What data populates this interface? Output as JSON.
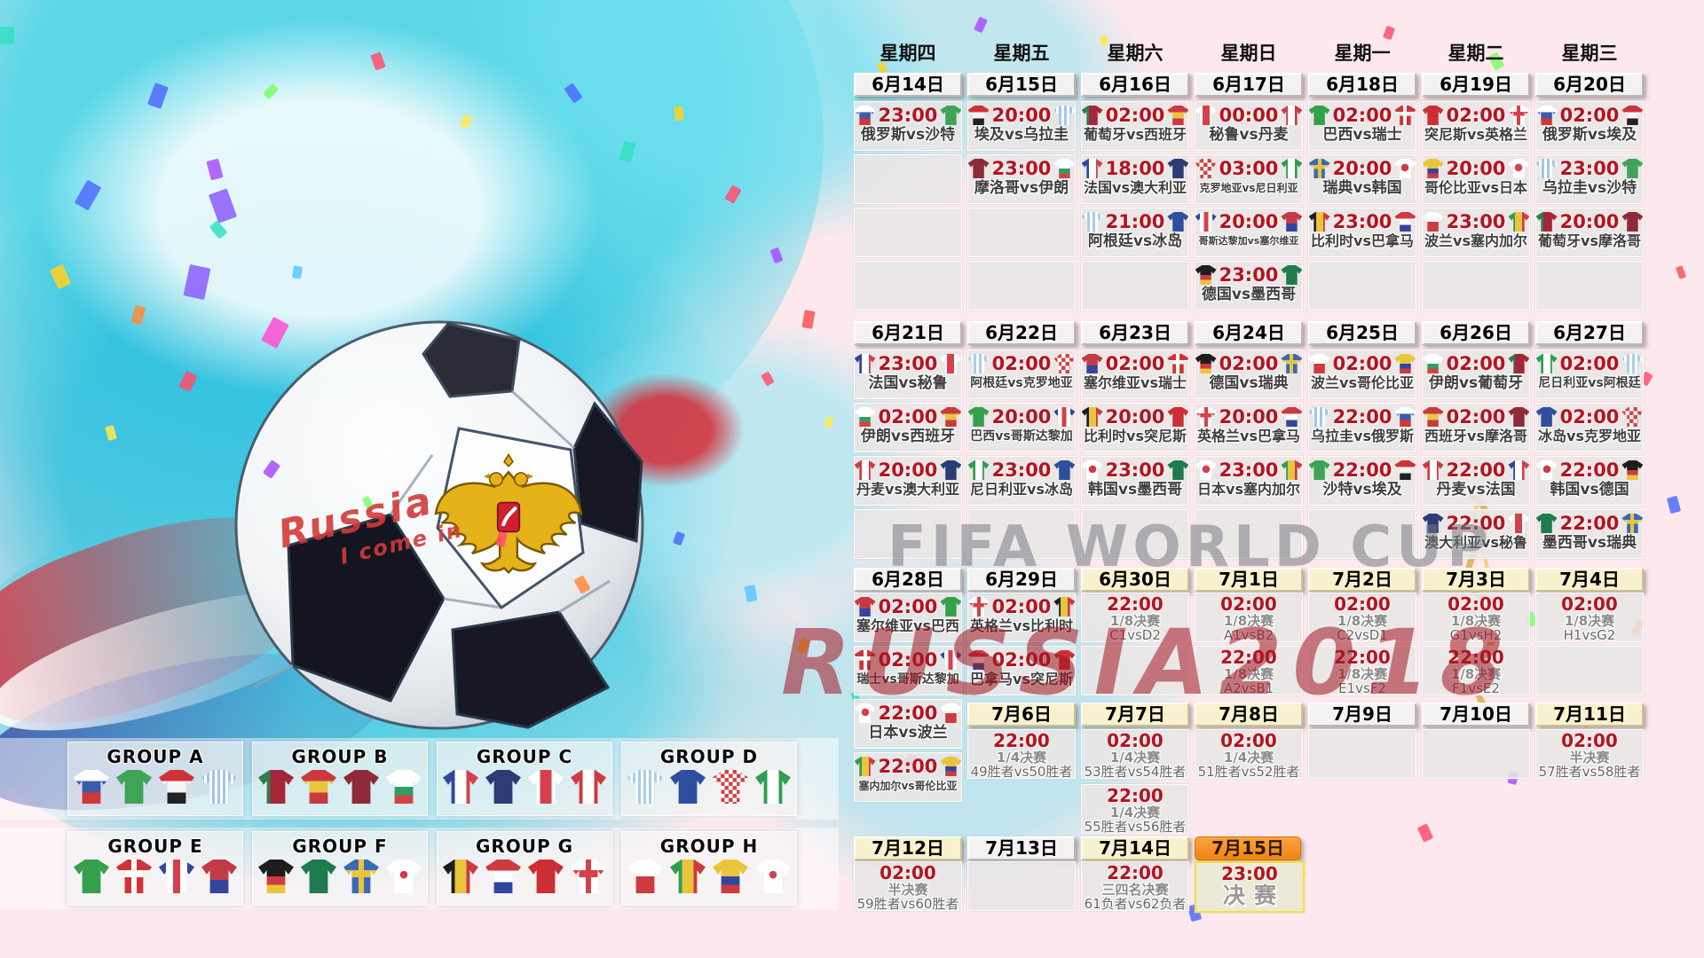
{
  "watermark": {
    "line1": "FIFA WORLD CUP",
    "line2": "RUSSIA2018"
  },
  "ball": {
    "text_line1": "Russia",
    "text_line2": "I come in"
  },
  "weekdays": [
    "星期四",
    "星期五",
    "星期六",
    "星期日",
    "星期一",
    "星期二",
    "星期三"
  ],
  "weeks": [
    {
      "dates": [
        {
          "label": "6月14日",
          "style": "gray"
        },
        {
          "label": "6月15日",
          "style": "gray"
        },
        {
          "label": "6月16日",
          "style": "gray"
        },
        {
          "label": "6月17日",
          "style": "gray"
        },
        {
          "label": "6月18日",
          "style": "gray"
        },
        {
          "label": "6月19日",
          "style": "gray"
        },
        {
          "label": "6月20日",
          "style": "gray"
        }
      ],
      "columns": [
        [
          {
            "t": "23:00",
            "h": "俄罗斯",
            "a": "沙特"
          },
          {},
          {},
          {}
        ],
        [
          {
            "t": "20:00",
            "h": "埃及",
            "a": "乌拉圭"
          },
          {
            "t": "23:00",
            "h": "摩洛哥",
            "a": "伊朗"
          },
          {},
          {}
        ],
        [
          {
            "t": "02:00",
            "h": "葡萄牙",
            "a": "西班牙"
          },
          {
            "t": "18:00",
            "h": "法国",
            "a": "澳大利亚"
          },
          {
            "t": "21:00",
            "h": "阿根廷",
            "a": "冰岛"
          },
          {}
        ],
        [
          {
            "t": "00:00",
            "h": "秘鲁",
            "a": "丹麦"
          },
          {
            "t": "03:00",
            "h": "克罗地亚",
            "a": "尼日利亚"
          },
          {
            "t": "20:00",
            "h": "哥斯达黎加",
            "a": "塞尔维亚"
          },
          {
            "t": "23:00",
            "h": "德国",
            "a": "墨西哥"
          }
        ],
        [
          {
            "t": "02:00",
            "h": "巴西",
            "a": "瑞士"
          },
          {
            "t": "20:00",
            "h": "瑞典",
            "a": "韩国"
          },
          {
            "t": "23:00",
            "h": "比利时",
            "a": "巴拿马"
          },
          {}
        ],
        [
          {
            "t": "02:00",
            "h": "突尼斯",
            "a": "英格兰"
          },
          {
            "t": "20:00",
            "h": "哥伦比亚",
            "a": "日本"
          },
          {
            "t": "23:00",
            "h": "波兰",
            "a": "塞内加尔"
          },
          {}
        ],
        [
          {
            "t": "02:00",
            "h": "俄罗斯",
            "a": "埃及"
          },
          {
            "t": "23:00",
            "h": "乌拉圭",
            "a": "沙特"
          },
          {
            "t": "20:00",
            "h": "葡萄牙",
            "a": "摩洛哥"
          },
          {}
        ]
      ]
    },
    {
      "dates": [
        {
          "label": "6月21日",
          "style": "gray"
        },
        {
          "label": "6月22日",
          "style": "gray"
        },
        {
          "label": "6月23日",
          "style": "gray"
        },
        {
          "label": "6月24日",
          "style": "gray"
        },
        {
          "label": "6月25日",
          "style": "gray"
        },
        {
          "label": "6月26日",
          "style": "gray"
        },
        {
          "label": "6月27日",
          "style": "gray"
        }
      ],
      "columns": [
        [
          {
            "t": "23:00",
            "h": "法国",
            "a": "秘鲁"
          },
          {
            "t": "02:00",
            "h": "伊朗",
            "a": "西班牙"
          },
          {
            "t": "20:00",
            "h": "丹麦",
            "a": "澳大利亚"
          },
          {}
        ],
        [
          {
            "t": "02:00",
            "h": "阿根廷",
            "a": "克罗地亚"
          },
          {
            "t": "20:00",
            "h": "巴西",
            "a": "哥斯达黎加"
          },
          {
            "t": "23:00",
            "h": "尼日利亚",
            "a": "冰岛"
          },
          {}
        ],
        [
          {
            "t": "02:00",
            "h": "塞尔维亚",
            "a": "瑞士"
          },
          {
            "t": "20:00",
            "h": "比利时",
            "a": "突尼斯"
          },
          {
            "t": "23:00",
            "h": "韩国",
            "a": "墨西哥"
          },
          {}
        ],
        [
          {
            "t": "02:00",
            "h": "德国",
            "a": "瑞典"
          },
          {
            "t": "20:00",
            "h": "英格兰",
            "a": "巴拿马"
          },
          {
            "t": "23:00",
            "h": "日本",
            "a": "塞内加尔"
          },
          {}
        ],
        [
          {
            "t": "02:00",
            "h": "波兰",
            "a": "哥伦比亚"
          },
          {
            "t": "22:00",
            "h": "乌拉圭",
            "a": "俄罗斯"
          },
          {
            "t": "22:00",
            "h": "沙特",
            "a": "埃及"
          },
          {}
        ],
        [
          {
            "t": "02:00",
            "h": "伊朗",
            "a": "葡萄牙"
          },
          {
            "t": "02:00",
            "h": "西班牙",
            "a": "摩洛哥"
          },
          {
            "t": "22:00",
            "h": "丹麦",
            "a": "法国"
          },
          {
            "t": "22:00",
            "h": "澳大利亚",
            "a": "秘鲁"
          }
        ],
        [
          {
            "t": "02:00",
            "h": "尼日利亚",
            "a": "阿根廷"
          },
          {
            "t": "02:00",
            "h": "冰岛",
            "a": "克罗地亚"
          },
          {
            "t": "22:00",
            "h": "韩国",
            "a": "德国"
          },
          {
            "t": "22:00",
            "h": "墨西哥",
            "a": "瑞典"
          }
        ]
      ]
    },
    {
      "dates": [
        {
          "label": "6月28日",
          "style": "gray"
        },
        {
          "label": "6月29日",
          "style": "gray"
        },
        {
          "label": "6月30日",
          "style": "yellow"
        },
        {
          "label": "7月1日",
          "style": "yellow"
        },
        {
          "label": "7月2日",
          "style": "yellow"
        },
        {
          "label": "7月3日",
          "style": "yellow"
        },
        {
          "label": "7月4日",
          "style": "yellow"
        }
      ],
      "columns": [
        [
          {
            "t": "02:00",
            "h": "塞尔维亚",
            "a": "巴西"
          },
          {
            "t": "02:00",
            "h": "瑞士",
            "a": "哥斯达黎加"
          },
          {
            "t": "22:00",
            "h": "日本",
            "a": "波兰"
          },
          {
            "t": "22:00",
            "h": "塞内加尔",
            "a": "哥伦比亚"
          }
        ],
        [
          {
            "t": "02:00",
            "h": "英格兰",
            "a": "比利时"
          },
          {
            "t": "02:00",
            "h": "巴拿马",
            "a": "突尼斯"
          }
        ],
        [
          {
            "t": "22:00",
            "s": "1/8决赛",
            "d": "C1vsD2"
          },
          {}
        ],
        [
          {
            "t": "02:00",
            "s": "1/8决赛",
            "d": "A1vsB2"
          },
          {
            "t": "22:00",
            "s": "1/8决赛",
            "d": "A2vsB1"
          }
        ],
        [
          {
            "t": "02:00",
            "s": "1/8决赛",
            "d": "C2vsD1"
          },
          {
            "t": "22:00",
            "s": "1/8决赛",
            "d": "E1vsF2"
          }
        ],
        [
          {
            "t": "02:00",
            "s": "1/8决赛",
            "d": "G1vsH2"
          },
          {
            "t": "22:00",
            "s": "1/8决赛",
            "d": "F1vsE2"
          }
        ],
        [
          {
            "t": "02:00",
            "s": "1/8决赛",
            "d": "H1vsG2"
          },
          {}
        ]
      ]
    },
    {
      "dates": [
        null,
        {
          "label": "7月6日",
          "style": "yellow"
        },
        {
          "label": "7月7日",
          "style": "yellow"
        },
        {
          "label": "7月8日",
          "style": "yellow"
        },
        {
          "label": "7月9日",
          "style": "gray"
        },
        {
          "label": "7月10日",
          "style": "gray"
        },
        {
          "label": "7月11日",
          "style": "yellow"
        }
      ],
      "columns": [
        [
          null,
          null
        ],
        [
          {
            "t": "22:00",
            "s": "1/4决赛",
            "d": "49胜者vs50胜者"
          },
          null
        ],
        [
          {
            "t": "02:00",
            "s": "1/4决赛",
            "d": "53胜者vs54胜者"
          },
          {
            "t": "22:00",
            "s": "1/4决赛",
            "d": "55胜者vs56胜者"
          }
        ],
        [
          {
            "t": "02:00",
            "s": "1/4决赛",
            "d": "51胜者vs52胜者"
          },
          null
        ],
        [
          {},
          null
        ],
        [
          {},
          null
        ],
        [
          {
            "t": "02:00",
            "s": "半决赛",
            "d": "57胜者vs58胜者"
          },
          null
        ]
      ]
    },
    {
      "dates": [
        {
          "label": "7月12日",
          "style": "yellow"
        },
        {
          "label": "7月13日",
          "style": "gray"
        },
        {
          "label": "7月14日",
          "style": "yellow"
        },
        {
          "label": "7月15日",
          "style": "orange"
        },
        null,
        null,
        null
      ],
      "columns": [
        [
          {
            "t": "02:00",
            "s": "半决赛",
            "d": "59胜者vs60胜者"
          }
        ],
        [
          {}
        ],
        [
          {
            "t": "22:00",
            "s": "三四名决赛",
            "d": "61负者vs62负者"
          }
        ],
        [
          {
            "t": "23:00",
            "s": "决赛",
            "f": true
          }
        ],
        [
          null
        ],
        [
          null
        ],
        [
          null
        ]
      ]
    }
  ],
  "vs_separator": "vs",
  "groups": [
    {
      "name": "GROUP A",
      "teams": [
        "俄罗斯",
        "沙特",
        "埃及",
        "乌拉圭"
      ]
    },
    {
      "name": "GROUP B",
      "teams": [
        "葡萄牙",
        "西班牙",
        "摩洛哥",
        "伊朗"
      ]
    },
    {
      "name": "GROUP C",
      "teams": [
        "法国",
        "澳大利亚",
        "秘鲁",
        "丹麦"
      ]
    },
    {
      "name": "GROUP D",
      "teams": [
        "阿根廷",
        "冰岛",
        "克罗地亚",
        "尼日利亚"
      ]
    },
    {
      "name": "GROUP E",
      "teams": [
        "巴西",
        "瑞士",
        "哥斯达黎加",
        "塞尔维亚"
      ]
    },
    {
      "name": "GROUP F",
      "teams": [
        "德国",
        "墨西哥",
        "瑞典",
        "韩国"
      ]
    },
    {
      "name": "GROUP G",
      "teams": [
        "比利时",
        "巴拿马",
        "突尼斯",
        "英格兰"
      ]
    },
    {
      "name": "GROUP H",
      "teams": [
        "波兰",
        "塞内加尔",
        "哥伦比亚",
        "日本"
      ]
    }
  ],
  "jerseys": {
    "俄罗斯": {
      "p": "h",
      "c": [
        "#ffffff",
        "#3a5bb0",
        "#d03838"
      ]
    },
    "沙特": {
      "p": "s",
      "c": [
        "#3fa457"
      ]
    },
    "埃及": {
      "p": "h",
      "c": [
        "#cf3337",
        "#f5f5f5",
        "#222222"
      ]
    },
    "乌拉圭": {
      "p": "sv",
      "c": [
        "#9fc6e8",
        "#ffffff"
      ]
    },
    "葡萄牙": {
      "p": "v",
      "c": [
        "#2e7d4f",
        "#a62639",
        "#a62639"
      ]
    },
    "西班牙": {
      "p": "h",
      "c": [
        "#c93a3f",
        "#e9c53e",
        "#c93a3f"
      ]
    },
    "摩洛哥": {
      "p": "s",
      "c": [
        "#8e2b38"
      ]
    },
    "伊朗": {
      "p": "h",
      "c": [
        "#ffffff",
        "#ffffff",
        "#2f9e62",
        "#d24444"
      ]
    },
    "法国": {
      "p": "v",
      "c": [
        "#31479e",
        "#ffffff",
        "#d6404a"
      ]
    },
    "澳大利亚": {
      "p": "s",
      "c": [
        "#2c3c74"
      ]
    },
    "秘鲁": {
      "p": "v",
      "c": [
        "#ffffff",
        "#d6404a",
        "#ffffff"
      ]
    },
    "丹麦": {
      "p": "v",
      "c": [
        "#cd3a40",
        "#ffffff",
        "#cd3a40"
      ]
    },
    "阿根廷": {
      "p": "sv",
      "c": [
        "#a8cdec",
        "#ffffff"
      ]
    },
    "冰岛": {
      "p": "s",
      "c": [
        "#2f4f9e"
      ]
    },
    "克罗地亚": {
      "p": "ck",
      "c": [
        "#d04444",
        "#ffffff"
      ]
    },
    "尼日利亚": {
      "p": "v",
      "c": [
        "#2e9e52",
        "#ffffff",
        "#2e9e52"
      ]
    },
    "巴西": {
      "p": "s",
      "c": [
        "#34a04c"
      ]
    },
    "瑞士": {
      "p": "cr",
      "c": [
        "#d03338",
        "#ffffff"
      ]
    },
    "哥斯达黎加": {
      "p": "v",
      "c": [
        "#31479e",
        "#ffffff",
        "#d6404a",
        "#ffffff",
        "#31479e"
      ]
    },
    "塞尔维亚": {
      "p": "h",
      "c": [
        "#c23a46",
        "#c23a46",
        "#c23a46",
        "#31479e",
        "#31479e"
      ]
    },
    "德国": {
      "p": "h",
      "c": [
        "#1d1d1d",
        "#1d1d1d",
        "#cd3a40",
        "#e9c53e"
      ]
    },
    "墨西哥": {
      "p": "s",
      "c": [
        "#1f7a4d"
      ]
    },
    "瑞典": {
      "p": "cr",
      "c": [
        "#3a6ab5",
        "#e9c53e"
      ]
    },
    "韩国": {
      "p": "ci",
      "c": [
        "#ffffff",
        "#cd3a40"
      ]
    },
    "比利时": {
      "p": "v",
      "c": [
        "#1d1d1d",
        "#e9c53e",
        "#cd3a40"
      ]
    },
    "巴拿马": {
      "p": "h",
      "c": [
        "#cd3a40",
        "#ffffff",
        "#31479e"
      ]
    },
    "突尼斯": {
      "p": "s",
      "c": [
        "#cd2e35"
      ]
    },
    "英格兰": {
      "p": "cr",
      "c": [
        "#ffffff",
        "#d6404a"
      ]
    },
    "波兰": {
      "p": "h",
      "c": [
        "#ffffff",
        "#cd3a40"
      ]
    },
    "塞内加尔": {
      "p": "v",
      "c": [
        "#2e9e52",
        "#e9c53e",
        "#cd3a40"
      ]
    },
    "哥伦比亚": {
      "p": "h",
      "c": [
        "#e9c53e",
        "#e9c53e",
        "#31479e",
        "#cd3a40"
      ]
    },
    "日本": {
      "p": "ci",
      "c": [
        "#ffffff",
        "#d6404a"
      ]
    }
  },
  "colors": {
    "background_pink": "#fde9ed",
    "splash_cyan": "#4fd4e6",
    "time_red": "#b31420",
    "team_text": "#3f3f3f",
    "date_gray": "#f4f2f1",
    "date_yellow": "#f7f1cf",
    "date_orange": "#f08418",
    "final_border": "#f2e43a",
    "watermark_red": "rgba(160,22,32,0.55)",
    "watermark_gray": "rgba(118,122,132,0.55)"
  }
}
